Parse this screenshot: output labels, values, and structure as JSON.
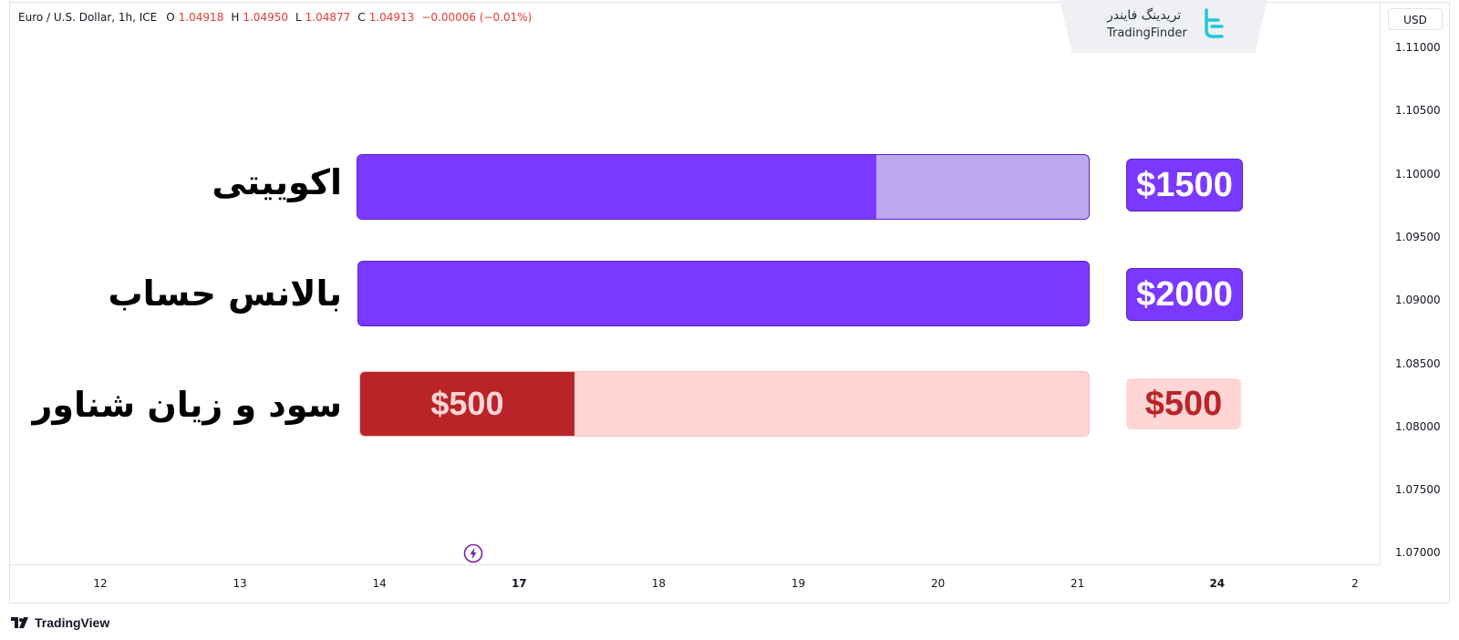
{
  "legend": {
    "symbol": "Euro / U.S. Dollar, 1h, ICE",
    "open_label": "O",
    "open": "1.04918",
    "high_label": "H",
    "high": "1.04950",
    "low_label": "L",
    "low": "1.04877",
    "close_label": "C",
    "close": "1.04913",
    "change": "−0.00006 (−0.01%)"
  },
  "currency": "USD",
  "brand": {
    "fa": "تریدینگ فایندر",
    "en": "TradingFinder"
  },
  "price_ticks": [
    "1.11000",
    "1.10500",
    "1.10000",
    "1.09500",
    "1.09000",
    "1.08500",
    "1.08000",
    "1.07500",
    "1.07000"
  ],
  "time_ticks": [
    {
      "label": "12",
      "bold": false
    },
    {
      "label": "13",
      "bold": false
    },
    {
      "label": "14",
      "bold": false
    },
    {
      "label": "17",
      "bold": true
    },
    {
      "label": "18",
      "bold": false
    },
    {
      "label": "19",
      "bold": false
    },
    {
      "label": "20",
      "bold": false
    },
    {
      "label": "21",
      "bold": false
    },
    {
      "label": "24",
      "bold": true
    },
    {
      "label": "2",
      "bold": false
    }
  ],
  "rows": {
    "equity": {
      "label": "اکوییتی",
      "value": "$1500",
      "fraction": 0.71,
      "fill": "#7b38ff",
      "track": "#bea8ef",
      "box_bg": "#7b38ff",
      "box_fg": "#ffffff"
    },
    "balance": {
      "label": "بالانس حساب",
      "value": "$2000",
      "fraction": 1.0,
      "fill": "#7b38ff",
      "track": "#7b38ff",
      "box_bg": "#7b38ff",
      "box_fg": "#ffffff"
    },
    "pnl": {
      "label": "سود و زیان شناور",
      "value": "$500",
      "bar_value": "$500",
      "fraction": 0.294,
      "fill": "#b92428",
      "track": "#ffd5d5",
      "box_bg": "#ffd5d5",
      "box_fg": "#b92428",
      "fill_fg": "#ffd5d5"
    }
  },
  "footer": {
    "brand": "TradingView"
  }
}
